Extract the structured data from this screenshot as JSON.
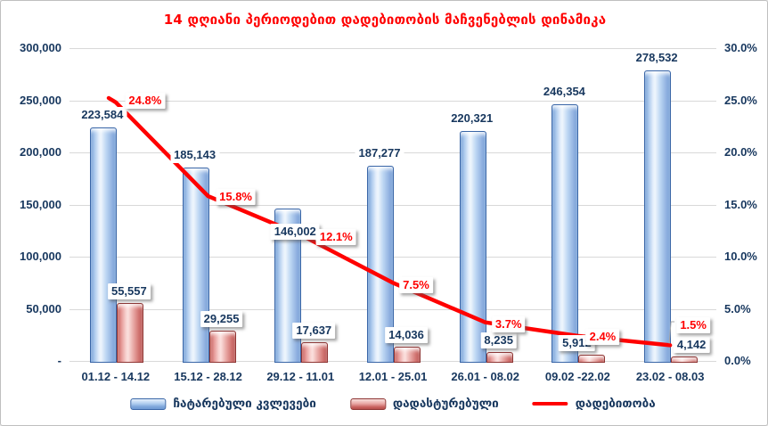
{
  "window": {
    "background": "#ffffff",
    "border_color": "#bfbfbf"
  },
  "chart_data": {
    "type": "combo-bar-line",
    "title": "14 დღიანი პერიოდებით დადებითობის მაჩვენებლის დინამიკა",
    "title_color": "#FF0000",
    "categories": [
      "01.12 - 14.12",
      "15.12 - 28.12",
      "29.12 - 11.01",
      "12.01 - 25.01",
      "26.01 - 08.02",
      "09.02 -22.02",
      "23.02 - 08.03"
    ],
    "series": [
      {
        "name": "ჩატარებული კვლევები",
        "type": "bar",
        "axis": "left",
        "color": "#A9C7EC",
        "border_color": "#3A66A7",
        "values": [
          223584,
          185143,
          146002,
          187277,
          220321,
          246354,
          278532
        ],
        "labels": [
          "223,584",
          "185,143",
          "146,002",
          "187,277",
          "220,321",
          "246,354",
          "278,532"
        ]
      },
      {
        "name": "დადასტურებული",
        "type": "bar",
        "axis": "left",
        "color": "#E8A7A4",
        "border_color": "#8F3634",
        "values": [
          55557,
          29255,
          17637,
          14036,
          8235,
          5912,
          4142
        ],
        "labels": [
          "55,557",
          "29,255",
          "17,637",
          "14,036",
          "8,235",
          "5,912",
          "4,142"
        ]
      },
      {
        "name": "დადებითობა",
        "type": "line",
        "axis": "right",
        "color": "#FF0000",
        "values": [
          24.8,
          15.8,
          12.1,
          7.5,
          3.7,
          2.4,
          1.5
        ],
        "labels": [
          "24.8%",
          "15.8%",
          "12.1%",
          "7.5%",
          "3.7%",
          "2.4%",
          "1.5%"
        ]
      }
    ],
    "left_axis": {
      "min": 0,
      "max": 300000,
      "step": 50000,
      "tick_labels": [
        "300,000",
        "250,000",
        "200,000",
        "150,000",
        "100,000",
        "50,000",
        "-"
      ]
    },
    "right_axis": {
      "min": 0,
      "max": 30,
      "step": 5,
      "tick_labels": [
        "30.0%",
        "25.0%",
        "20.0%",
        "15.0%",
        "10.0%",
        "5.0%",
        "0.0%"
      ]
    },
    "grid": true,
    "gridline_color": "#d9d9d9",
    "legend_position": "bottom",
    "label_colors": {
      "values": "#17375E",
      "percent": "#FF0000"
    }
  }
}
